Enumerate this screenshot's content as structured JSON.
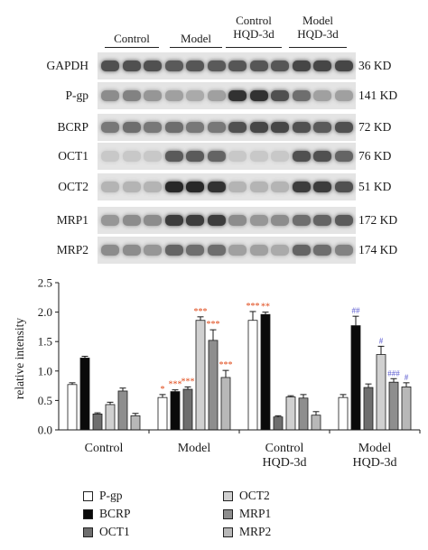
{
  "blot_panel": {
    "groups": [
      "Control",
      "Model",
      "Control\nHQD-3d",
      "Model\nHQD-3d"
    ],
    "rows": [
      {
        "protein": "GAPDH",
        "size": "36 KD"
      },
      {
        "protein": "P-gp",
        "size": "141 KD"
      },
      {
        "protein": "BCRP",
        "size": "72 KD"
      },
      {
        "protein": "OCT1",
        "size": "76 KD"
      },
      {
        "protein": "OCT2",
        "size": "51 KD"
      },
      {
        "protein": "MRP1",
        "size": "172 KD"
      },
      {
        "protein": "MRP2",
        "size": "174 KD"
      }
    ],
    "band_intensity": [
      [
        0.75,
        0.75,
        0.75,
        0.7,
        0.72,
        0.7,
        0.72,
        0.72,
        0.72,
        0.8,
        0.8,
        0.8
      ],
      [
        0.45,
        0.5,
        0.4,
        0.35,
        0.3,
        0.35,
        0.9,
        0.9,
        0.75,
        0.6,
        0.35,
        0.35
      ],
      [
        0.55,
        0.6,
        0.55,
        0.6,
        0.55,
        0.55,
        0.75,
        0.8,
        0.8,
        0.75,
        0.7,
        0.75
      ],
      [
        0.15,
        0.15,
        0.15,
        0.7,
        0.7,
        0.65,
        0.15,
        0.15,
        0.15,
        0.75,
        0.75,
        0.65
      ],
      [
        0.25,
        0.25,
        0.25,
        0.95,
        0.95,
        0.9,
        0.25,
        0.25,
        0.25,
        0.85,
        0.85,
        0.75
      ],
      [
        0.4,
        0.45,
        0.45,
        0.85,
        0.85,
        0.85,
        0.45,
        0.4,
        0.45,
        0.6,
        0.65,
        0.7
      ],
      [
        0.45,
        0.45,
        0.4,
        0.65,
        0.6,
        0.6,
        0.35,
        0.35,
        0.3,
        0.65,
        0.6,
        0.5
      ]
    ]
  },
  "chart_data": {
    "type": "bar",
    "title": "",
    "xlabel": "",
    "ylabel": "relative intensity",
    "ylim": [
      0,
      2.5
    ],
    "yticks": [
      "0.0",
      "0.5",
      "1.0",
      "1.5",
      "2.0",
      "2.5"
    ],
    "categories": [
      "Control",
      "Model",
      "Control\nHQD-3d",
      "Model\nHQD-3d"
    ],
    "legend_placement": "bottom",
    "series": [
      {
        "name": "P-gp",
        "fill": "#ffffff",
        "values": [
          0.77,
          0.55,
          1.86,
          0.55
        ],
        "errors": [
          0.03,
          0.05,
          0.15,
          0.05
        ],
        "marks": [
          "",
          "*",
          "***",
          ""
        ]
      },
      {
        "name": "BCRP",
        "fill": "#0a0a0a",
        "values": [
          1.22,
          0.65,
          1.96,
          1.77
        ],
        "errors": [
          0.03,
          0.03,
          0.04,
          0.16
        ],
        "marks": [
          "",
          "***",
          "**",
          "##"
        ]
      },
      {
        "name": "OCT1",
        "fill": "#6e6e6e",
        "values": [
          0.27,
          0.69,
          0.22,
          0.72
        ],
        "errors": [
          0.02,
          0.04,
          0.02,
          0.06
        ],
        "marks": [
          "",
          "***",
          "",
          ""
        ]
      },
      {
        "name": "OCT2",
        "fill": "#d0d0d0",
        "values": [
          0.43,
          1.86,
          0.56,
          1.28
        ],
        "errors": [
          0.04,
          0.06,
          0.02,
          0.14
        ],
        "marks": [
          "",
          "***",
          "",
          "#"
        ]
      },
      {
        "name": "MRP1",
        "fill": "#8e8e8e",
        "values": [
          0.66,
          1.52,
          0.54,
          0.81
        ],
        "errors": [
          0.05,
          0.18,
          0.06,
          0.06
        ],
        "marks": [
          "",
          "***",
          "",
          "###"
        ]
      },
      {
        "name": "MRP2",
        "fill": "#b8b8b8",
        "values": [
          0.24,
          0.89,
          0.25,
          0.73
        ],
        "errors": [
          0.04,
          0.12,
          0.06,
          0.07
        ],
        "marks": [
          "",
          "***",
          "",
          "#"
        ]
      }
    ],
    "mark_colors": {
      "star": "#e04a1a",
      "hash": "#5a5ad0"
    }
  }
}
